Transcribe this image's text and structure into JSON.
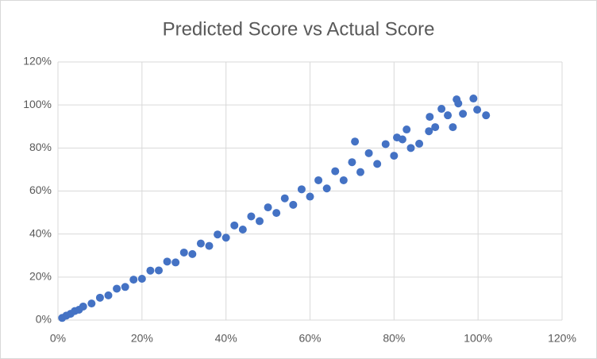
{
  "chart_data": {
    "type": "scatter",
    "title": "Predicted Score vs Actual Score",
    "color": "#4472c4",
    "grid": true,
    "x": [
      1,
      2,
      3,
      4,
      5,
      6,
      8,
      10,
      12,
      14,
      16,
      18,
      20,
      22,
      24,
      26,
      28,
      30,
      32,
      34,
      36,
      38,
      40,
      42,
      44,
      46,
      48,
      50,
      52,
      54,
      56,
      58,
      60,
      62,
      64,
      66,
      68,
      70,
      72,
      74,
      76,
      78,
      80,
      82,
      84,
      86,
      70.7,
      98.9,
      95.3,
      94.9,
      101.9,
      99.8,
      91.3,
      92.8,
      96.4,
      88.5,
      89.8,
      88.3,
      94.0,
      83.0,
      80.7
    ],
    "values": [
      1,
      2.1,
      2.9,
      4.2,
      4.8,
      6.3,
      7.7,
      10.4,
      11.5,
      14.6,
      15.4,
      18.8,
      19.2,
      23,
      23.1,
      27.2,
      26.8,
      31.4,
      30.7,
      35.6,
      34.5,
      39.8,
      38.3,
      44,
      42.1,
      48.2,
      46,
      52.4,
      49.8,
      56.6,
      53.6,
      60.8,
      57.4,
      65,
      61.2,
      69.2,
      65,
      73.4,
      68.8,
      77.6,
      72.6,
      81.8,
      76.4,
      84,
      80,
      82,
      83.0,
      103,
      100.7,
      102.6,
      95.2,
      97.8,
      98.2,
      95.2,
      95.9,
      94.5,
      89.7,
      87.8,
      89.7,
      88.6,
      84.9
    ],
    "xlim": [
      0,
      120
    ],
    "ylim": [
      0,
      120
    ],
    "xticks": [
      {
        "value": 0,
        "label": "0%"
      },
      {
        "value": 20,
        "label": "20%"
      },
      {
        "value": 40,
        "label": "40%"
      },
      {
        "value": 60,
        "label": "60%"
      },
      {
        "value": 80,
        "label": "80%"
      },
      {
        "value": 100,
        "label": "100%"
      },
      {
        "value": 120,
        "label": "120%"
      }
    ],
    "yticks": [
      {
        "value": 0,
        "label": "0%"
      },
      {
        "value": 20,
        "label": "20%"
      },
      {
        "value": 40,
        "label": "40%"
      },
      {
        "value": 60,
        "label": "60%"
      },
      {
        "value": 80,
        "label": "80%"
      },
      {
        "value": 100,
        "label": "100%"
      },
      {
        "value": 120,
        "label": "120%"
      }
    ]
  }
}
